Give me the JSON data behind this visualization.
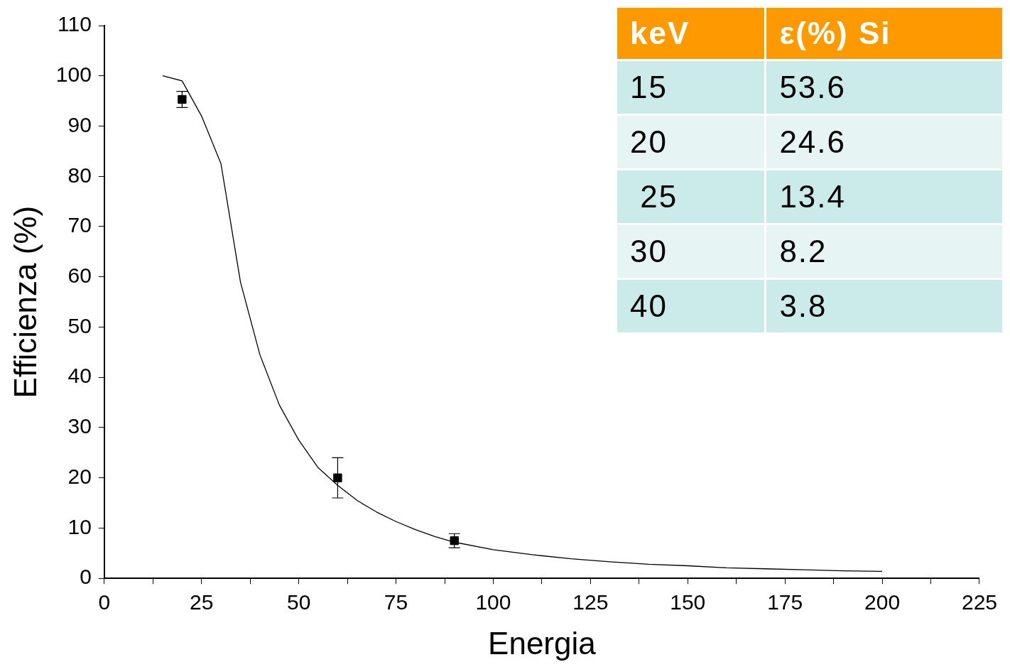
{
  "chart_data": [
    {
      "type": "scatter",
      "xlabel": "Energia",
      "ylabel": "Efficienza (%)",
      "xlim": [
        0,
        225
      ],
      "ylim": [
        0,
        110
      ],
      "xticks": [
        0,
        {
          "value": 12.5,
          "label": null
        },
        25,
        {
          "value": 37.5,
          "label": null
        },
        50,
        {
          "value": 62.5,
          "label": null
        },
        75,
        {
          "value": 87.5,
          "label": null
        },
        100,
        {
          "value": 112.5,
          "label": null
        },
        125,
        {
          "value": 137.5,
          "label": null
        },
        150,
        {
          "value": 162.5,
          "label": null
        },
        175,
        {
          "value": 187.5,
          "label": null
        },
        200,
        {
          "value": 212.5,
          "label": null
        },
        225
      ],
      "yticks": [
        0,
        10,
        20,
        30,
        40,
        50,
        60,
        70,
        80,
        90,
        100,
        110
      ],
      "grid": false,
      "legend": false,
      "series": [
        {
          "type": "line",
          "color": "#000000",
          "marker": "none",
          "x": [
            15,
            20,
            25,
            30,
            35,
            40,
            45,
            50,
            55,
            60,
            65,
            70,
            75,
            80,
            85,
            90,
            100,
            110,
            120,
            130,
            140,
            150,
            160,
            170,
            180,
            190,
            200
          ],
          "values": [
            100,
            99,
            92,
            82.5,
            59,
            44.5,
            34.5,
            27.5,
            22,
            18.5,
            15.5,
            13.2,
            11.3,
            9.7,
            8.3,
            7.2,
            5.7,
            4.7,
            3.9,
            3.3,
            2.8,
            2.5,
            2.1,
            1.9,
            1.7,
            1.5,
            1.4
          ]
        },
        {
          "type": "scatter",
          "color": "#000000",
          "marker": "square",
          "x": [
            20,
            60,
            90
          ],
          "values": [
            95.3,
            20,
            7.5
          ],
          "errors": [
            1.6,
            4,
            1.4
          ]
        }
      ]
    },
    {
      "type": "other",
      "xlabel": "keV",
      "ylabel": "ε(%) Si",
      "categories": [
        "15",
        "20",
        " 25",
        "30",
        "40"
      ],
      "values": [
        53.6,
        24.6,
        13.4,
        8.2,
        3.8
      ],
      "data_labels": true
    }
  ]
}
